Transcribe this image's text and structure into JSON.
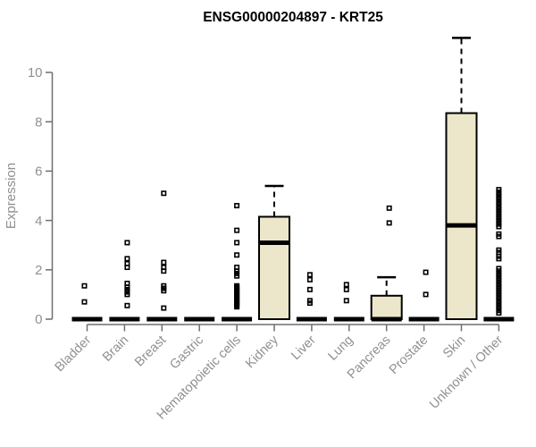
{
  "title": "ENSG00000204897 - KRT25",
  "colors": {
    "box_fill": "#ECE7CA",
    "box_stroke": "#000000",
    "axis_color": "#6E6E6E",
    "tick_label_color": "#909090",
    "title_color": "#000000"
  },
  "chart_data": {
    "type": "boxplot",
    "title": "ENSG00000204897 - KRT25",
    "xlabel": "",
    "ylabel": "Expression",
    "ylim": [
      0,
      10
    ],
    "yticks": [
      0,
      2,
      4,
      6,
      8,
      10
    ],
    "grid": false,
    "legend": "none",
    "categories": [
      "Bladder",
      "Brain",
      "Breast",
      "Gastric",
      "Hematopoietic cells",
      "Kidney",
      "Liver",
      "Lung",
      "Pancreas",
      "Prostate",
      "Skin",
      "Unknown / Other"
    ],
    "series": [
      {
        "name": "Bladder",
        "q1": 0,
        "median": 0,
        "q3": 0,
        "whisker_low": 0,
        "whisker_high": 0,
        "outliers": [
          0.7,
          1.35
        ]
      },
      {
        "name": "Brain",
        "q1": 0,
        "median": 0,
        "q3": 0,
        "whisker_low": 0,
        "whisker_high": 0,
        "outliers": [
          0.55,
          1.0,
          1.1,
          1.2,
          1.3,
          1.45,
          2.1,
          2.25,
          2.45,
          3.1
        ]
      },
      {
        "name": "Breast",
        "q1": 0,
        "median": 0,
        "q3": 0,
        "whisker_low": 0,
        "whisker_high": 0,
        "outliers": [
          0.45,
          1.15,
          1.25,
          1.35,
          1.95,
          2.1,
          2.3,
          5.1
        ]
      },
      {
        "name": "Gastric",
        "q1": 0,
        "median": 0,
        "q3": 0,
        "whisker_low": 0,
        "whisker_high": 0,
        "outliers": []
      },
      {
        "name": "Hematopoietic cells",
        "q1": 0,
        "median": 0,
        "q3": 0,
        "whisker_low": 0,
        "whisker_high": 0,
        "outliers": [
          0.5,
          0.55,
          0.6,
          0.65,
          0.7,
          0.75,
          0.8,
          0.85,
          0.9,
          0.95,
          1.0,
          1.05,
          1.1,
          1.15,
          1.2,
          1.25,
          1.3,
          1.35,
          1.75,
          1.85,
          1.95,
          2.1,
          2.6,
          3.1,
          3.6,
          4.6
        ]
      },
      {
        "name": "Kidney",
        "q1": 0,
        "median": 3.1,
        "q3": 4.15,
        "whisker_low": 0,
        "whisker_high": 5.4,
        "outliers": []
      },
      {
        "name": "Liver",
        "q1": 0,
        "median": 0,
        "q3": 0,
        "whisker_low": 0,
        "whisker_high": 0,
        "outliers": [
          0.65,
          0.75,
          1.2,
          1.6,
          1.8
        ]
      },
      {
        "name": "Lung",
        "q1": 0,
        "median": 0,
        "q3": 0,
        "whisker_low": 0,
        "whisker_high": 0,
        "outliers": [
          0.75,
          1.2,
          1.4
        ]
      },
      {
        "name": "Pancreas",
        "q1": 0,
        "median": 0,
        "q3": 0.95,
        "whisker_low": 0,
        "whisker_high": 1.7,
        "outliers": [
          3.9,
          4.5
        ]
      },
      {
        "name": "Prostate",
        "q1": 0,
        "median": 0,
        "q3": 0,
        "whisker_low": 0,
        "whisker_high": 0,
        "outliers": [
          1.0,
          1.9
        ]
      },
      {
        "name": "Skin",
        "q1": 0,
        "median": 3.8,
        "q3": 8.35,
        "whisker_low": 0,
        "whisker_high": 11.4,
        "outliers": []
      },
      {
        "name": "Unknown / Other",
        "q1": 0,
        "median": 0,
        "q3": 0,
        "whisker_low": 0,
        "whisker_high": 0,
        "outliers": [
          0.25,
          0.35,
          0.45,
          0.55,
          0.65,
          0.75,
          0.85,
          0.95,
          1.05,
          1.15,
          1.25,
          1.35,
          1.45,
          1.55,
          1.65,
          1.75,
          1.85,
          1.95,
          2.05,
          2.45,
          2.55,
          2.7,
          2.8,
          3.35,
          3.45,
          3.75,
          3.85,
          3.95,
          4.05,
          4.15,
          4.25,
          4.35,
          4.45,
          4.55,
          4.65,
          4.75,
          4.85,
          4.95,
          5.05,
          5.15,
          5.25
        ]
      }
    ]
  }
}
